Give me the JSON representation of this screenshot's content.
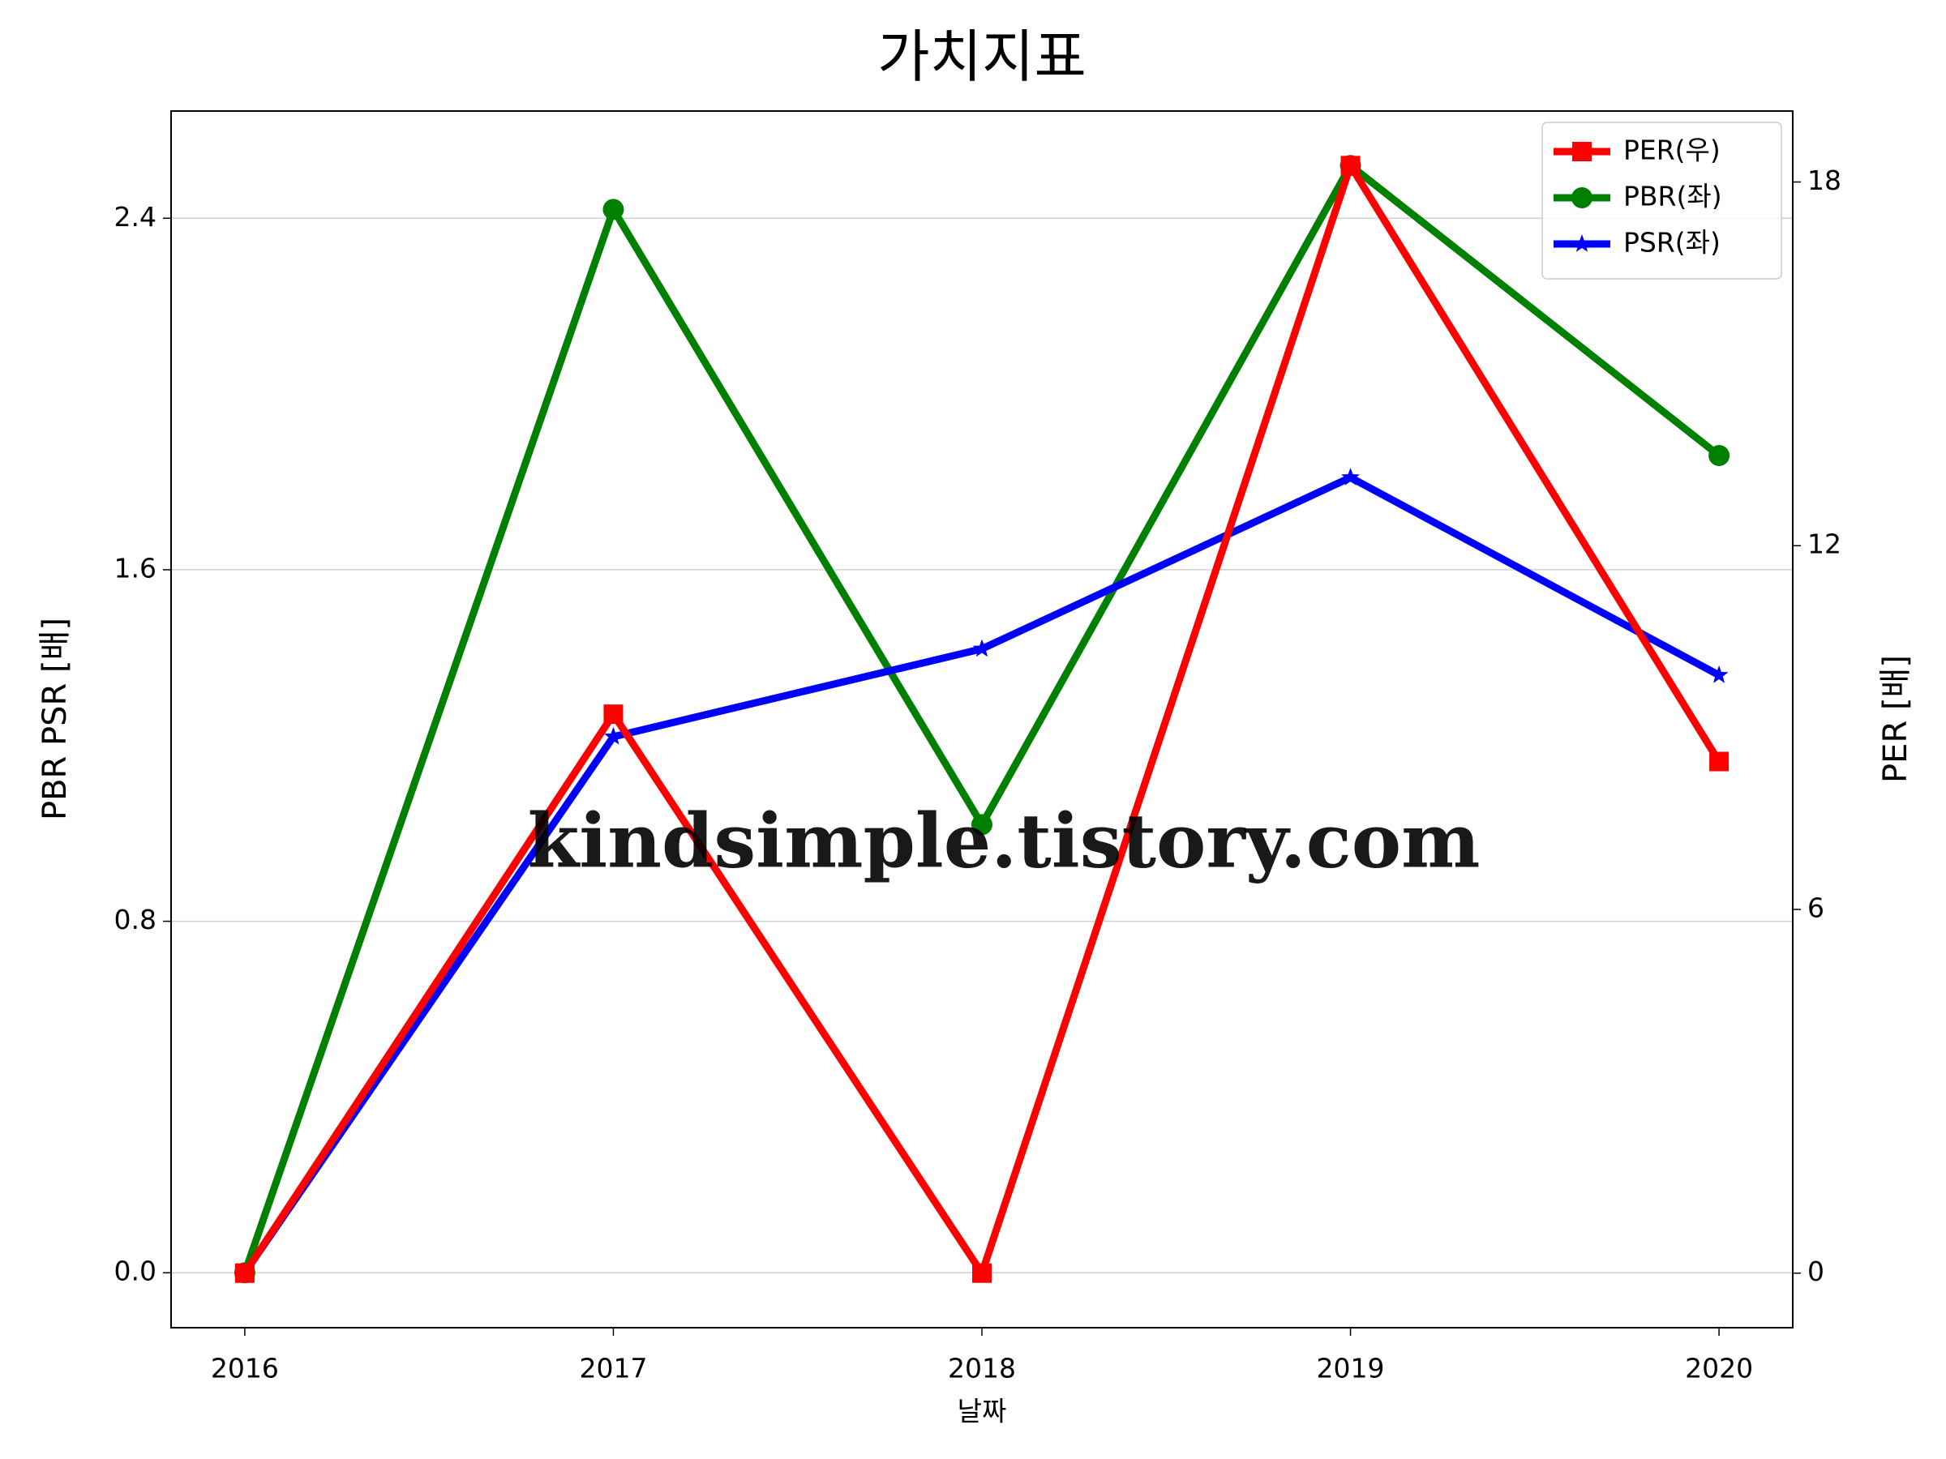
{
  "chart_data": {
    "type": "line",
    "title": "가치지표",
    "x_label": "날짜",
    "y_label": "PBR PSR [배]",
    "y_label_color": "#008000",
    "y2_label": "PER [배]",
    "y2_label_color": "#ff0000",
    "watermark": "kindsimple.tistory.com",
    "x": [
      2016,
      2017,
      2018,
      2019,
      2020
    ],
    "xlim": [
      2015.8,
      2020.2
    ],
    "xticks": [
      2016,
      2017,
      2018,
      2019,
      2020
    ],
    "ylim": [
      -0.125,
      2.644
    ],
    "yticks": [
      {
        "value": 0,
        "label": "0.0"
      },
      0.8,
      1.6,
      2.4
    ],
    "y2lim": [
      -0.9,
      19.17
    ],
    "y2ticks": [
      0,
      6,
      12,
      18
    ],
    "grid": true,
    "legend": "upper right",
    "series": [
      {
        "name": "PER(우)",
        "color": "#ff0000",
        "marker": "square",
        "axis": "y2",
        "values": [
          0,
          9.22,
          0,
          18.27,
          8.44
        ]
      },
      {
        "name": "PBR(좌)",
        "color": "#008000",
        "marker": "circle",
        "values": [
          0,
          2.42,
          1.02,
          2.52,
          1.86
        ]
      },
      {
        "name": "PSR(좌)",
        "color": "#0000ff",
        "marker": "star",
        "values": [
          0,
          1.22,
          1.42,
          1.81,
          1.36
        ]
      }
    ]
  }
}
